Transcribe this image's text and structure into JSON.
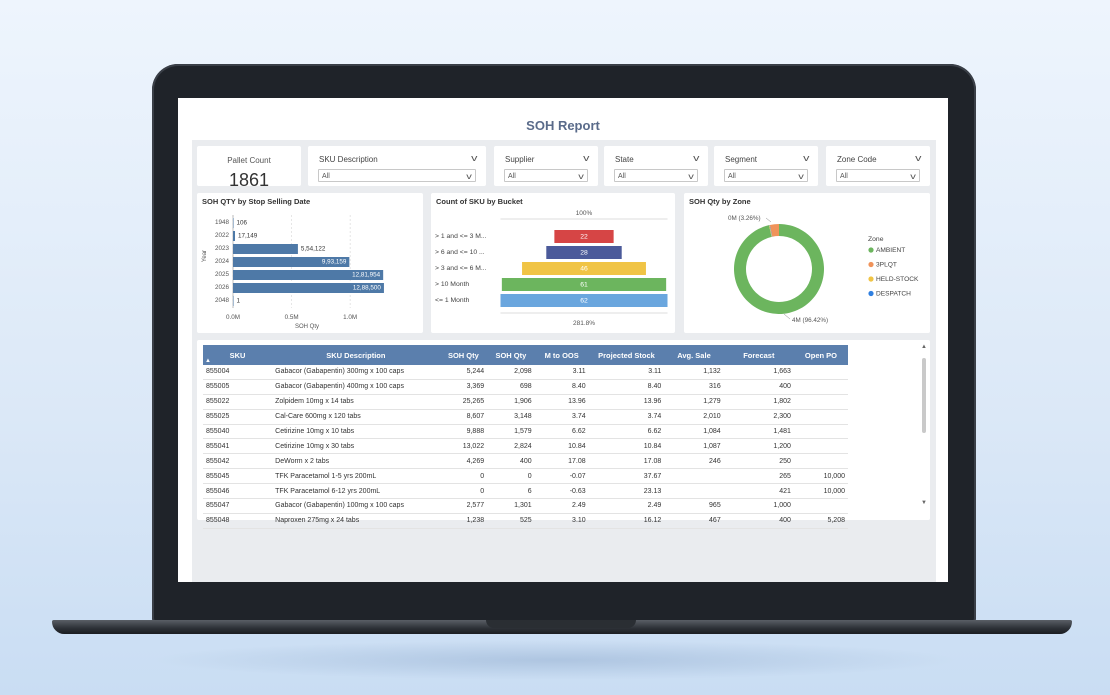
{
  "report": {
    "title": "SOH Report"
  },
  "card": {
    "label": "Pallet Count",
    "value": "1861"
  },
  "slicers": [
    {
      "label": "SKU Description",
      "value": "All"
    },
    {
      "label": "Supplier",
      "value": "All"
    },
    {
      "label": "State",
      "value": "All"
    },
    {
      "label": "Segment",
      "value": "All"
    },
    {
      "label": "Zone Code",
      "value": "All"
    }
  ],
  "chart_data": [
    {
      "type": "bar",
      "title": "SOH QTY by Stop Selling Date",
      "xlabel": "SOH Qty",
      "ylabel": "Year",
      "categories": [
        "1948",
        "2022",
        "2023",
        "2024",
        "2025",
        "2026",
        "2048"
      ],
      "values": [
        106,
        17149,
        554122,
        993159,
        1281954,
        1288500,
        1
      ],
      "data_labels": [
        "106",
        "17,149",
        "5,54,122",
        "9,93,159",
        "12,81,954",
        "12,88,500",
        "1"
      ],
      "x_ticks": [
        "0.0M",
        "0.5M",
        "1.0M"
      ],
      "xlim": [
        0,
        1400000
      ],
      "orientation": "horizontal",
      "color": "#4e79a7"
    },
    {
      "type": "bar",
      "subtype": "funnel",
      "title": "Count of SKU by Bucket",
      "categories": [
        "> 1 and <= 3 M...",
        "> 6 and <= 10 ...",
        "> 3 and <= 6 M...",
        "> 10 Month",
        "<= 1 Month"
      ],
      "values": [
        22,
        28,
        46,
        61,
        62
      ],
      "colors": [
        "#d64545",
        "#4b5a9a",
        "#f0c445",
        "#6cb55e",
        "#6aa6de"
      ],
      "top_label": "100%",
      "bottom_label": "281.8%"
    },
    {
      "type": "pie",
      "subtype": "donut",
      "title": "SOH Qty by Zone",
      "legend_title": "Zone",
      "legend_position": "right",
      "series": [
        {
          "name": "AMBIENT",
          "value": 96.42,
          "color": "#6cb55e"
        },
        {
          "name": "3PLQT",
          "value": 3.26,
          "color": "#f0935a"
        },
        {
          "name": "HELD-STOCK",
          "value": 0.2,
          "color": "#f0c445"
        },
        {
          "name": "DESPATCH",
          "value": 0.12,
          "color": "#2f7fe0"
        }
      ],
      "slice_labels": [
        "4M (96.42%)",
        "0M (3.26%)"
      ]
    }
  ],
  "table": {
    "columns": [
      "SKU",
      "SKU Description",
      "SOH Qty",
      "SOH Qty",
      "M to OOS",
      "Projected Stock",
      "Avg. Sale",
      "Forecast",
      "Open PO"
    ],
    "sort_indicator": "▲",
    "rows": [
      [
        "855004",
        "Gabacor (Gabapentin) 300mg x 100 caps",
        "5,244",
        "2,098",
        "3.11",
        "3.11",
        "1,132",
        "1,663",
        ""
      ],
      [
        "855005",
        "Gabacor (Gabapentin) 400mg x 100 caps",
        "3,369",
        "698",
        "8.40",
        "8.40",
        "316",
        "400",
        ""
      ],
      [
        "855022",
        "Zolpidem 10mg x 14 tabs",
        "25,265",
        "1,906",
        "13.96",
        "13.96",
        "1,279",
        "1,802",
        ""
      ],
      [
        "855025",
        "Cal-Care 600mg x 120 tabs",
        "8,607",
        "3,148",
        "3.74",
        "3.74",
        "2,010",
        "2,300",
        ""
      ],
      [
        "855040",
        "Cetirizine 10mg x 10 tabs",
        "9,888",
        "1,579",
        "6.62",
        "6.62",
        "1,084",
        "1,481",
        ""
      ],
      [
        "855041",
        "Cetirizine 10mg x 30 tabs",
        "13,022",
        "2,824",
        "10.84",
        "10.84",
        "1,087",
        "1,200",
        ""
      ],
      [
        "855042",
        "DeWorm x 2 tabs",
        "4,269",
        "400",
        "17.08",
        "17.08",
        "246",
        "250",
        ""
      ],
      [
        "855045",
        "TFK Paracetamol 1-5 yrs 200mL",
        "0",
        "0",
        "-0.07",
        "37.67",
        "",
        "265",
        "10,000"
      ],
      [
        "855046",
        "TFK Paracetamol 6-12 yrs 200mL",
        "0",
        "6",
        "-0.63",
        "23.13",
        "",
        "421",
        "10,000"
      ],
      [
        "855047",
        "Gabacor (Gabapentin) 100mg x 100 caps",
        "2,577",
        "1,301",
        "2.49",
        "2.49",
        "965",
        "1,000",
        ""
      ],
      [
        "855048",
        "Naproxen 275mg x 24 tabs",
        "1,238",
        "525",
        "3.10",
        "16.12",
        "467",
        "400",
        "5,208"
      ]
    ]
  },
  "icons": {
    "chevron": "chevron-down-icon",
    "scroll_up": "scroll-up-icon",
    "scroll_down": "scroll-down-icon"
  }
}
